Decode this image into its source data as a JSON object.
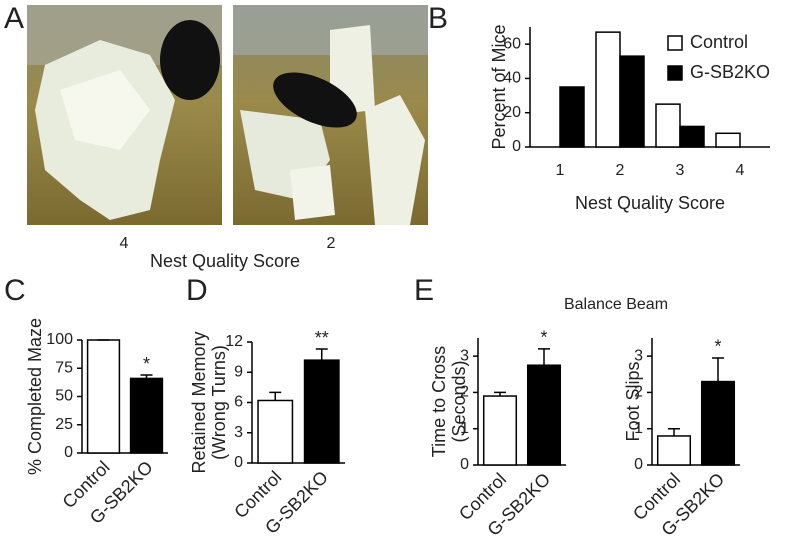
{
  "figure": {
    "panel_a_label": "A",
    "photo_scores": [
      "4",
      "2"
    ],
    "photo_axis_label": "Nest Quality Score",
    "panel_e_label": "E",
    "panel_e_title": "Balance Beam"
  },
  "chart_data": [
    {
      "type": "grouped-bar",
      "label": "B",
      "categories": [
        "1",
        "2",
        "3",
        "4"
      ],
      "series": [
        {
          "name": "Control",
          "color": "#ffffff",
          "values": [
            0,
            67,
            25,
            8
          ]
        },
        {
          "name": "G-SB2KO",
          "color": "#000000",
          "values": [
            35,
            53,
            12,
            0
          ]
        }
      ],
      "ylim": [
        0,
        70
      ],
      "yticks": [
        0,
        20,
        40,
        60
      ],
      "xlabel": "Nest Quality Score",
      "ylabel": "Percent of Mice",
      "legend": "top-right"
    },
    {
      "type": "bar",
      "label": "C",
      "categories": [
        "Control",
        "G-SB2KO"
      ],
      "colors": [
        "#ffffff",
        "#000000"
      ],
      "values": [
        100,
        66
      ],
      "errors": [
        0,
        3
      ],
      "ylim": [
        0,
        100
      ],
      "yticks": [
        0,
        25,
        50,
        75,
        100
      ],
      "ylabel": "% Completed Maze",
      "annotation": "*"
    },
    {
      "type": "bar",
      "label": "D",
      "categories": [
        "Control",
        "G-SB2KO"
      ],
      "colors": [
        "#ffffff",
        "#000000"
      ],
      "values": [
        6.2,
        10.2
      ],
      "errors": [
        0.8,
        1.1
      ],
      "ylim": [
        0,
        12
      ],
      "yticks": [
        0,
        3,
        6,
        9,
        12
      ],
      "ylabel": [
        "Retained Memory",
        "(Wrong Turns)"
      ],
      "annotation": "**"
    },
    {
      "type": "bar",
      "categories": [
        "Control",
        "G-SB2KO"
      ],
      "colors": [
        "#ffffff",
        "#000000"
      ],
      "values": [
        1.9,
        2.75
      ],
      "errors": [
        0.1,
        0.45
      ],
      "ylim": [
        0,
        3.5
      ],
      "yticks": [
        0,
        1,
        2,
        3
      ],
      "ylabel": [
        "Time to Cross",
        "(Seconds)"
      ],
      "annotation": "*"
    },
    {
      "type": "bar",
      "categories": [
        "Control",
        "G-SB2KO"
      ],
      "colors": [
        "#ffffff",
        "#000000"
      ],
      "values": [
        0.8,
        2.3
      ],
      "errors": [
        0.2,
        0.65
      ],
      "ylim": [
        0,
        3.5
      ],
      "yticks": [
        0,
        1,
        2,
        3
      ],
      "ylabel": "Foot Slips",
      "annotation": "*"
    }
  ]
}
